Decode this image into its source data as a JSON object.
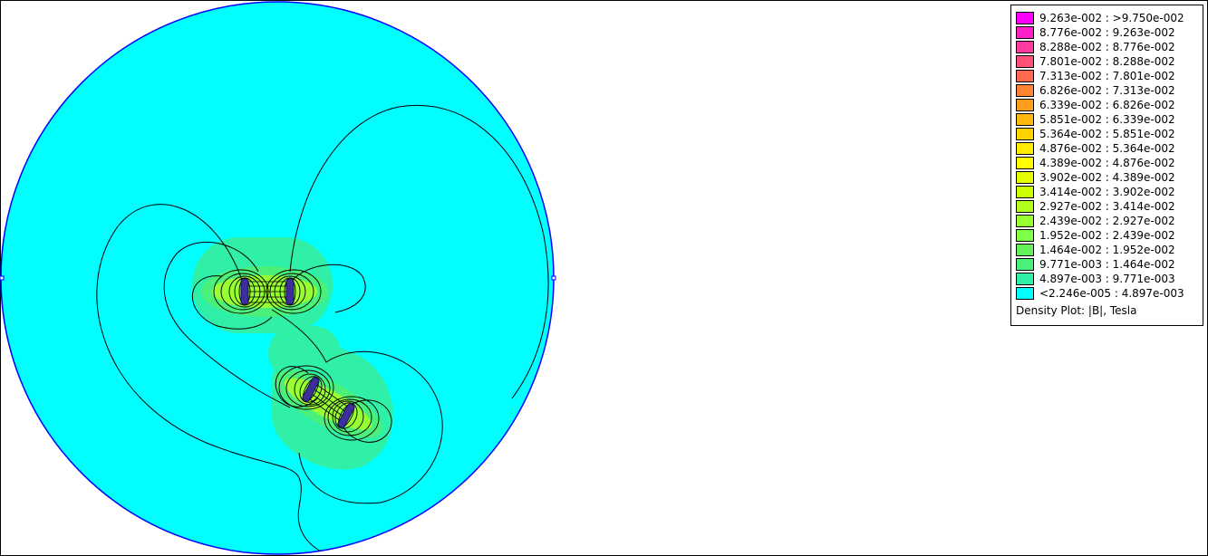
{
  "legend": {
    "caption": "Density Plot: |B|, Tesla",
    "entries": [
      {
        "label": "9.263e-002 : >9.750e-002",
        "color": "#ff00ff"
      },
      {
        "label": "8.776e-002 : 9.263e-002",
        "color": "#ff20c8"
      },
      {
        "label": "8.288e-002 : 8.776e-002",
        "color": "#ff3aa0"
      },
      {
        "label": "7.801e-002 : 8.288e-002",
        "color": "#ff5078"
      },
      {
        "label": "7.313e-002 : 7.801e-002",
        "color": "#ff6a50"
      },
      {
        "label": "6.826e-002 : 7.313e-002",
        "color": "#ff8436"
      },
      {
        "label": "6.339e-002 : 6.826e-002",
        "color": "#ff9e1c"
      },
      {
        "label": "5.851e-002 : 6.339e-002",
        "color": "#ffb810"
      },
      {
        "label": "5.364e-002 : 5.851e-002",
        "color": "#ffd200"
      },
      {
        "label": "4.876e-002 : 5.364e-002",
        "color": "#ffec00"
      },
      {
        "label": "4.389e-002 : 4.876e-002",
        "color": "#ffff00"
      },
      {
        "label": "3.902e-002 : 4.389e-002",
        "color": "#e6ff00"
      },
      {
        "label": "3.414e-002 : 3.902e-002",
        "color": "#ccff00"
      },
      {
        "label": "2.927e-002 : 3.414e-002",
        "color": "#b2ff1e"
      },
      {
        "label": "2.439e-002 : 2.927e-002",
        "color": "#98ff32"
      },
      {
        "label": "1.952e-002 : 2.439e-002",
        "color": "#7eff46"
      },
      {
        "label": "1.464e-002 : 1.952e-002",
        "color": "#64f05a"
      },
      {
        "label": "9.771e-003 : 1.464e-002",
        "color": "#4af07a"
      },
      {
        "label": "4.897e-003 : 9.771e-003",
        "color": "#30f0a8"
      },
      {
        "label": "<2.246e-005 : 4.897e-003",
        "color": "#00ffff"
      }
    ]
  },
  "plot": {
    "background_color": "#00ffff",
    "boundary_color": "#0000ff",
    "contour_color": "#000000",
    "halo_color": "#30f0a8",
    "ring_color": "#98ff32",
    "core_color": "#ccff00",
    "conductor_color": "#3b2fa0"
  }
}
